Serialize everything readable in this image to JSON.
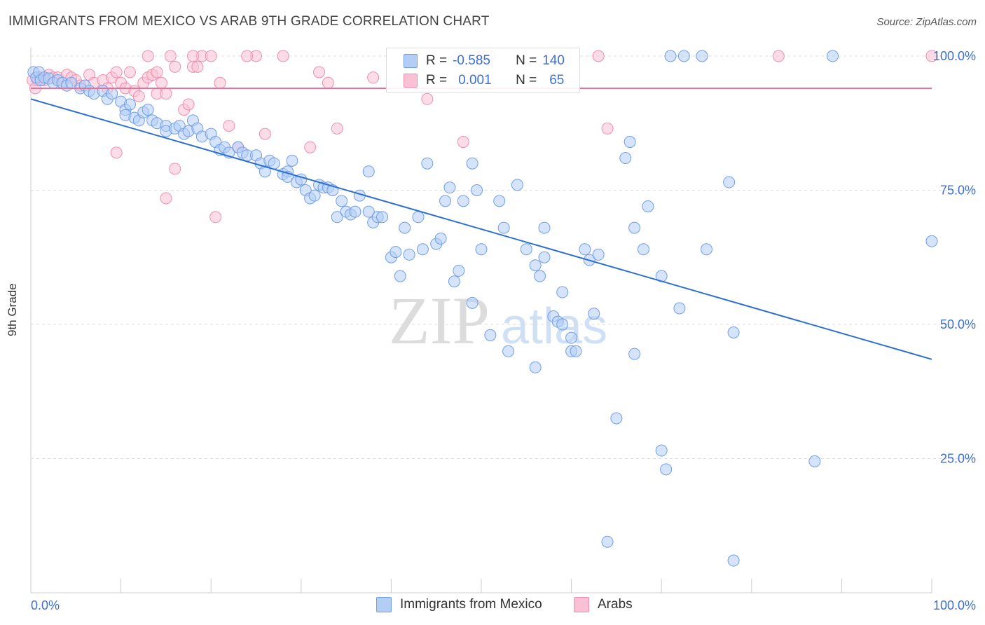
{
  "header": {
    "title": "IMMIGRANTS FROM MEXICO VS ARAB 9TH GRADE CORRELATION CHART",
    "source": "Source: ZipAtlas.com"
  },
  "watermark": {
    "zip": "ZIP",
    "atlas": "atlas"
  },
  "stats": {
    "rows": [
      {
        "r_label": "R =",
        "r_value": "-0.585",
        "n_label": "N =",
        "n_value": "140",
        "color": "#6f9ee8"
      },
      {
        "r_label": "R =",
        "r_value": "0.001",
        "n_label": "N =",
        "n_value": "65",
        "color": "#ef8eae"
      }
    ]
  },
  "legend": {
    "mexico": "Immigrants from Mexico",
    "arabs": "Arabs"
  },
  "chart_data": {
    "type": "scatter",
    "title": "IMMIGRANTS FROM MEXICO VS ARAB 9TH GRADE CORRELATION CHART",
    "ylabel": "9th Grade",
    "xlabel": "",
    "xlim": [
      0,
      100
    ],
    "ylim": [
      0,
      100
    ],
    "x_tick_labels": [
      "0.0%",
      "100.0%"
    ],
    "y_tick_labels": [
      "100.0%",
      "75.0%",
      "50.0%",
      "25.0%"
    ],
    "y_ticks": [
      100,
      75,
      50,
      25
    ],
    "grid": "horizontal dashed",
    "legend_position": "bottom-center",
    "series": [
      {
        "name": "Immigrants from Mexico",
        "color": "#6f9ee8",
        "fill": "#b3cdf5",
        "trend": {
          "x": [
            0,
            100
          ],
          "y": [
            92,
            43.5
          ]
        },
        "points": [
          [
            0.3,
            97
          ],
          [
            0.6,
            96
          ],
          [
            0.9,
            97
          ],
          [
            1.1,
            95.5
          ],
          [
            1.5,
            96
          ],
          [
            2,
            95.8
          ],
          [
            2.5,
            95
          ],
          [
            3,
            95.5
          ],
          [
            3.5,
            95
          ],
          [
            4,
            94.5
          ],
          [
            4.5,
            95
          ],
          [
            5.5,
            94
          ],
          [
            6,
            94.5
          ],
          [
            6.5,
            93.5
          ],
          [
            7,
            93
          ],
          [
            8,
            93.5
          ],
          [
            8.5,
            92
          ],
          [
            9,
            93
          ],
          [
            10,
            91.5
          ],
          [
            10.5,
            90
          ],
          [
            10.5,
            89
          ],
          [
            11,
            91
          ],
          [
            11.5,
            88.5
          ],
          [
            12,
            88
          ],
          [
            12.5,
            89.5
          ],
          [
            13,
            90
          ],
          [
            13.5,
            88
          ],
          [
            14,
            87.5
          ],
          [
            15,
            87
          ],
          [
            15,
            86
          ],
          [
            16,
            86.5
          ],
          [
            16.5,
            87
          ],
          [
            17,
            85.5
          ],
          [
            17.5,
            86
          ],
          [
            18,
            88
          ],
          [
            18.5,
            86.5
          ],
          [
            19,
            85
          ],
          [
            20,
            85.5
          ],
          [
            20.5,
            84
          ],
          [
            21,
            82.5
          ],
          [
            21.5,
            83
          ],
          [
            22,
            82
          ],
          [
            23,
            83
          ],
          [
            23.5,
            82
          ],
          [
            24,
            81.5
          ],
          [
            25,
            81.5
          ],
          [
            25.5,
            80
          ],
          [
            26,
            78.5
          ],
          [
            26.5,
            80.5
          ],
          [
            27,
            80
          ],
          [
            28,
            78
          ],
          [
            28.5,
            78.5
          ],
          [
            28.5,
            77.5
          ],
          [
            29,
            80.5
          ],
          [
            29.5,
            76.5
          ],
          [
            30,
            77
          ],
          [
            30.5,
            75
          ],
          [
            31,
            73.5
          ],
          [
            31.5,
            74
          ],
          [
            32,
            76
          ],
          [
            32.5,
            75.5
          ],
          [
            33,
            75.5
          ],
          [
            33.5,
            75
          ],
          [
            34,
            70
          ],
          [
            34.5,
            73
          ],
          [
            35,
            71
          ],
          [
            35.5,
            70.5
          ],
          [
            36,
            71
          ],
          [
            36.5,
            74
          ],
          [
            37.5,
            78.5
          ],
          [
            37.5,
            71
          ],
          [
            38,
            69
          ],
          [
            38.5,
            70
          ],
          [
            39,
            70
          ],
          [
            40,
            62.5
          ],
          [
            40.5,
            63.5
          ],
          [
            41,
            59
          ],
          [
            41.5,
            68
          ],
          [
            42,
            63
          ],
          [
            43,
            70
          ],
          [
            43.5,
            64
          ],
          [
            44,
            80
          ],
          [
            45,
            65
          ],
          [
            45.5,
            66
          ],
          [
            46,
            73
          ],
          [
            46.5,
            75.5
          ],
          [
            47,
            58
          ],
          [
            47.5,
            60
          ],
          [
            48,
            73
          ],
          [
            49,
            54
          ],
          [
            49,
            80
          ],
          [
            49.5,
            75
          ],
          [
            50,
            64
          ],
          [
            51,
            48
          ],
          [
            52,
            73
          ],
          [
            52.5,
            68
          ],
          [
            53,
            45
          ],
          [
            54,
            76
          ],
          [
            55,
            64
          ],
          [
            56,
            42
          ],
          [
            56,
            61
          ],
          [
            56.5,
            59
          ],
          [
            57,
            62.5
          ],
          [
            57,
            68
          ],
          [
            58,
            51.5
          ],
          [
            58.5,
            50.5
          ],
          [
            59,
            56
          ],
          [
            59,
            50
          ],
          [
            60,
            47.5
          ],
          [
            60,
            45
          ],
          [
            60.5,
            45
          ],
          [
            61.5,
            64
          ],
          [
            62,
            62
          ],
          [
            62.5,
            52
          ],
          [
            63,
            63
          ],
          [
            65,
            32.5
          ],
          [
            66,
            81
          ],
          [
            66.5,
            84
          ],
          [
            67,
            68
          ],
          [
            67,
            44.5
          ],
          [
            68,
            64
          ],
          [
            68.5,
            72
          ],
          [
            70,
            59
          ],
          [
            70,
            26.5
          ],
          [
            70.5,
            23
          ],
          [
            72,
            53
          ],
          [
            75,
            64
          ],
          [
            77.5,
            76.5
          ],
          [
            78,
            48.5
          ],
          [
            78,
            6
          ],
          [
            87,
            24.5
          ],
          [
            64,
            9.5
          ],
          [
            71,
            100
          ],
          [
            72.5,
            100
          ],
          [
            74.5,
            100
          ],
          [
            89,
            100
          ],
          [
            100,
            65.5
          ]
        ]
      },
      {
        "name": "Arabs",
        "color": "#ef8eae",
        "fill": "#f9c1d3",
        "trend": {
          "x": [
            0,
            100
          ],
          "y": [
            94,
            94
          ]
        },
        "points": [
          [
            0.2,
            95.5
          ],
          [
            0.5,
            94
          ],
          [
            0.8,
            95.5
          ],
          [
            1,
            96
          ],
          [
            1.5,
            95.5
          ],
          [
            2,
            96.5
          ],
          [
            2.5,
            96
          ],
          [
            3,
            96
          ],
          [
            3.5,
            95
          ],
          [
            4,
            96.5
          ],
          [
            4.5,
            96
          ],
          [
            5,
            95.5
          ],
          [
            5.5,
            94.5
          ],
          [
            6.5,
            96.5
          ],
          [
            7,
            95
          ],
          [
            8,
            95.5
          ],
          [
            8.5,
            94
          ],
          [
            9,
            96
          ],
          [
            9.5,
            97
          ],
          [
            10,
            95
          ],
          [
            10.5,
            94
          ],
          [
            11,
            97
          ],
          [
            11.5,
            93.5
          ],
          [
            12,
            92.5
          ],
          [
            12.5,
            95
          ],
          [
            13,
            96
          ],
          [
            13.5,
            96.5
          ],
          [
            14,
            97
          ],
          [
            14,
            93
          ],
          [
            14.5,
            95
          ],
          [
            15,
            93
          ],
          [
            16,
            98
          ],
          [
            17,
            90
          ],
          [
            17.5,
            91
          ],
          [
            18,
            98
          ],
          [
            18.5,
            98
          ],
          [
            19,
            100
          ],
          [
            21,
            95
          ],
          [
            22,
            87
          ],
          [
            23,
            83
          ],
          [
            25,
            100
          ],
          [
            26,
            85.5
          ],
          [
            28,
            100
          ],
          [
            31,
            83
          ],
          [
            32,
            97
          ],
          [
            33,
            95
          ],
          [
            34,
            86.5
          ],
          [
            38,
            96
          ],
          [
            44,
            92
          ],
          [
            48,
            84
          ],
          [
            50,
            100
          ],
          [
            51,
            100
          ],
          [
            63,
            100
          ],
          [
            64,
            86.5
          ],
          [
            83,
            100
          ],
          [
            100,
            100
          ],
          [
            9.5,
            82
          ],
          [
            16,
            79
          ],
          [
            15,
            73.5
          ],
          [
            20.5,
            70
          ],
          [
            13,
            100
          ],
          [
            15.5,
            100
          ],
          [
            18,
            100
          ],
          [
            20,
            100
          ],
          [
            24,
            100
          ]
        ]
      }
    ]
  }
}
